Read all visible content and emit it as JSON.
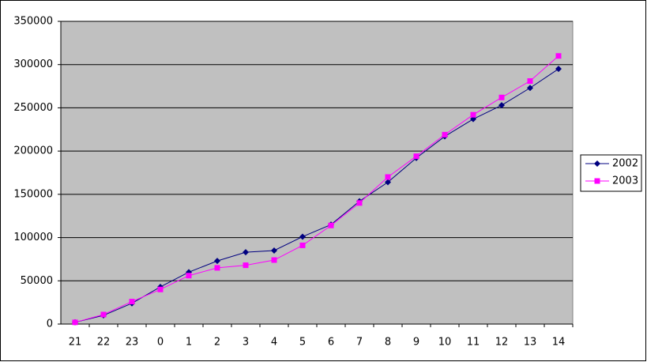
{
  "chart_data": {
    "type": "line",
    "categories": [
      "21",
      "22",
      "23",
      "0",
      "1",
      "2",
      "3",
      "4",
      "5",
      "6",
      "7",
      "8",
      "9",
      "10",
      "11",
      "12",
      "13",
      "14"
    ],
    "series": [
      {
        "name": "2002",
        "color": "#000080",
        "marker": "diamond",
        "values": [
          2000,
          10000,
          24000,
          43000,
          60000,
          73000,
          83000,
          85000,
          101000,
          115000,
          142000,
          164000,
          192000,
          217000,
          237000,
          253000,
          273000,
          295000
        ]
      },
      {
        "name": "2003",
        "color": "#ff00ff",
        "marker": "square",
        "values": [
          2000,
          11000,
          26000,
          40000,
          56000,
          65000,
          68000,
          74000,
          91000,
          114000,
          140000,
          170000,
          194000,
          219000,
          242000,
          262000,
          281000,
          310000
        ]
      }
    ],
    "ylim": [
      0,
      350000
    ],
    "yticks": [
      0,
      50000,
      100000,
      150000,
      200000,
      250000,
      300000,
      350000
    ],
    "grid": true,
    "legend": "right"
  }
}
